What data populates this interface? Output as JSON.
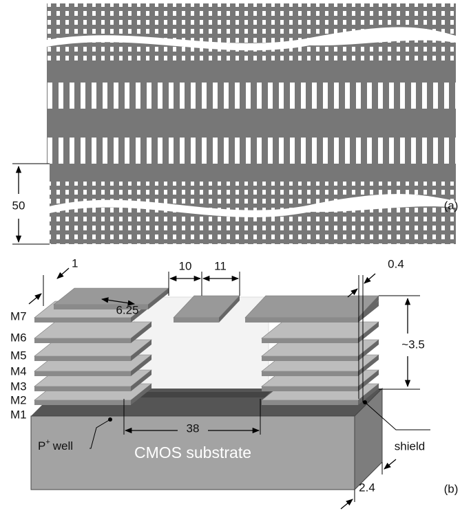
{
  "panel_a": {
    "dimension": "50",
    "label": "(a)"
  },
  "panel_b": {
    "dimensions": {
      "via_width": "1",
      "gap": "10",
      "line_width": "11",
      "spacing": "0.4",
      "pitch": "6.25",
      "height": "~3.5",
      "span": "38",
      "shield_width": "2.4"
    },
    "layers": [
      "M7",
      "M6",
      "M5",
      "M4",
      "M3",
      "M2",
      "M1"
    ],
    "well": {
      "base": "P",
      "superscript": "+",
      "suffix": "well"
    },
    "substrate": "CMOS substrate",
    "shield": "shield",
    "label": "(b)"
  }
}
